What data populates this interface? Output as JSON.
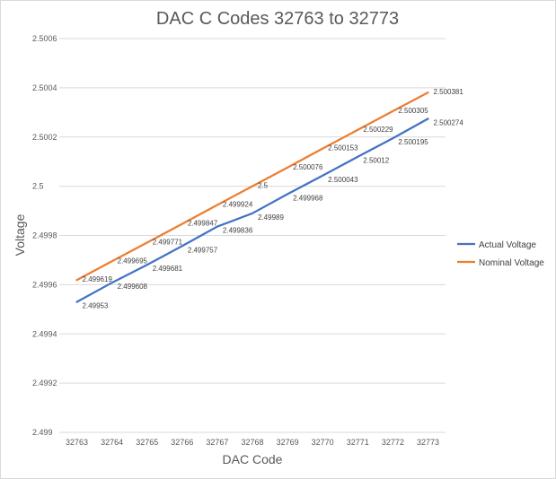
{
  "chart_data": {
    "type": "line",
    "title": "DAC C Codes 32763 to 32773",
    "xlabel": "DAC Code",
    "ylabel": "Voltage",
    "categories": [
      "32763",
      "32764",
      "32765",
      "32766",
      "32767",
      "32768",
      "32769",
      "32770",
      "32771",
      "32772",
      "32773"
    ],
    "ylim": [
      2.499,
      2.5006
    ],
    "yticks": [
      "2.499",
      "2.4992",
      "2.4994",
      "2.4996",
      "2.4998",
      "2.5",
      "2.5002",
      "2.5004",
      "2.5006"
    ],
    "grid": true,
    "legend": "right",
    "series": [
      {
        "name": "Actual Voltage",
        "color": "#4472c4",
        "values": [
          2.49953,
          2.499608,
          2.499681,
          2.499757,
          2.499836,
          2.49989,
          2.499968,
          2.500043,
          2.50012,
          2.500195,
          2.500274
        ],
        "labels": [
          "2.49953",
          "2.499608",
          "2.499681",
          "2.499757",
          "2.499836",
          "2.49989",
          "2.499968",
          "2.500043",
          "2.50012",
          "2.500195",
          "2.500274"
        ]
      },
      {
        "name": "Nominal Voltage",
        "color": "#ed7d31",
        "values": [
          2.499619,
          2.499695,
          2.499771,
          2.499847,
          2.499924,
          2.5,
          2.500076,
          2.500153,
          2.500229,
          2.500305,
          2.500381
        ],
        "labels": [
          "2.499619",
          "2.499695",
          "2.499771",
          "2.499847",
          "2.499924",
          "2.5",
          "2.500076",
          "2.500153",
          "2.500229",
          "2.500305",
          "2.500381"
        ]
      }
    ]
  }
}
